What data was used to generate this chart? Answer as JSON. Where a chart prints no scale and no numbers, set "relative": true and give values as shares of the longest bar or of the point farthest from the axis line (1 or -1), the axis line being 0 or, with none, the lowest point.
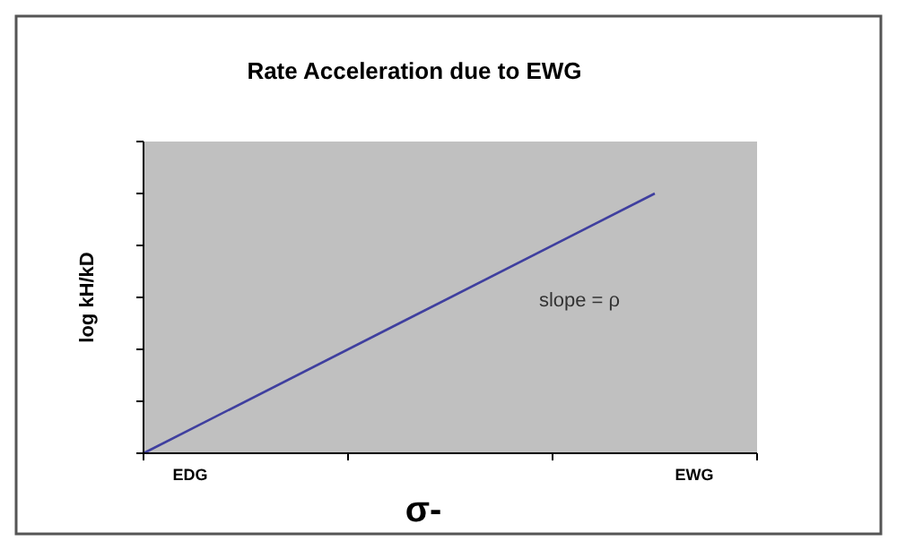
{
  "chart_data": {
    "type": "line",
    "title": "Rate Acceleration due to EWG",
    "xlabel": "σ-",
    "ylabel": "log kH/kD",
    "categories": [
      "EDG",
      null,
      "EWG"
    ],
    "relative": true,
    "series": [
      {
        "color": "#3f3f9f",
        "values": [
          0,
          0.5,
          1
        ]
      }
    ],
    "annotations": [
      "slope = ρ"
    ],
    "grid": false,
    "marker": "none",
    "line_style": "solid"
  }
}
